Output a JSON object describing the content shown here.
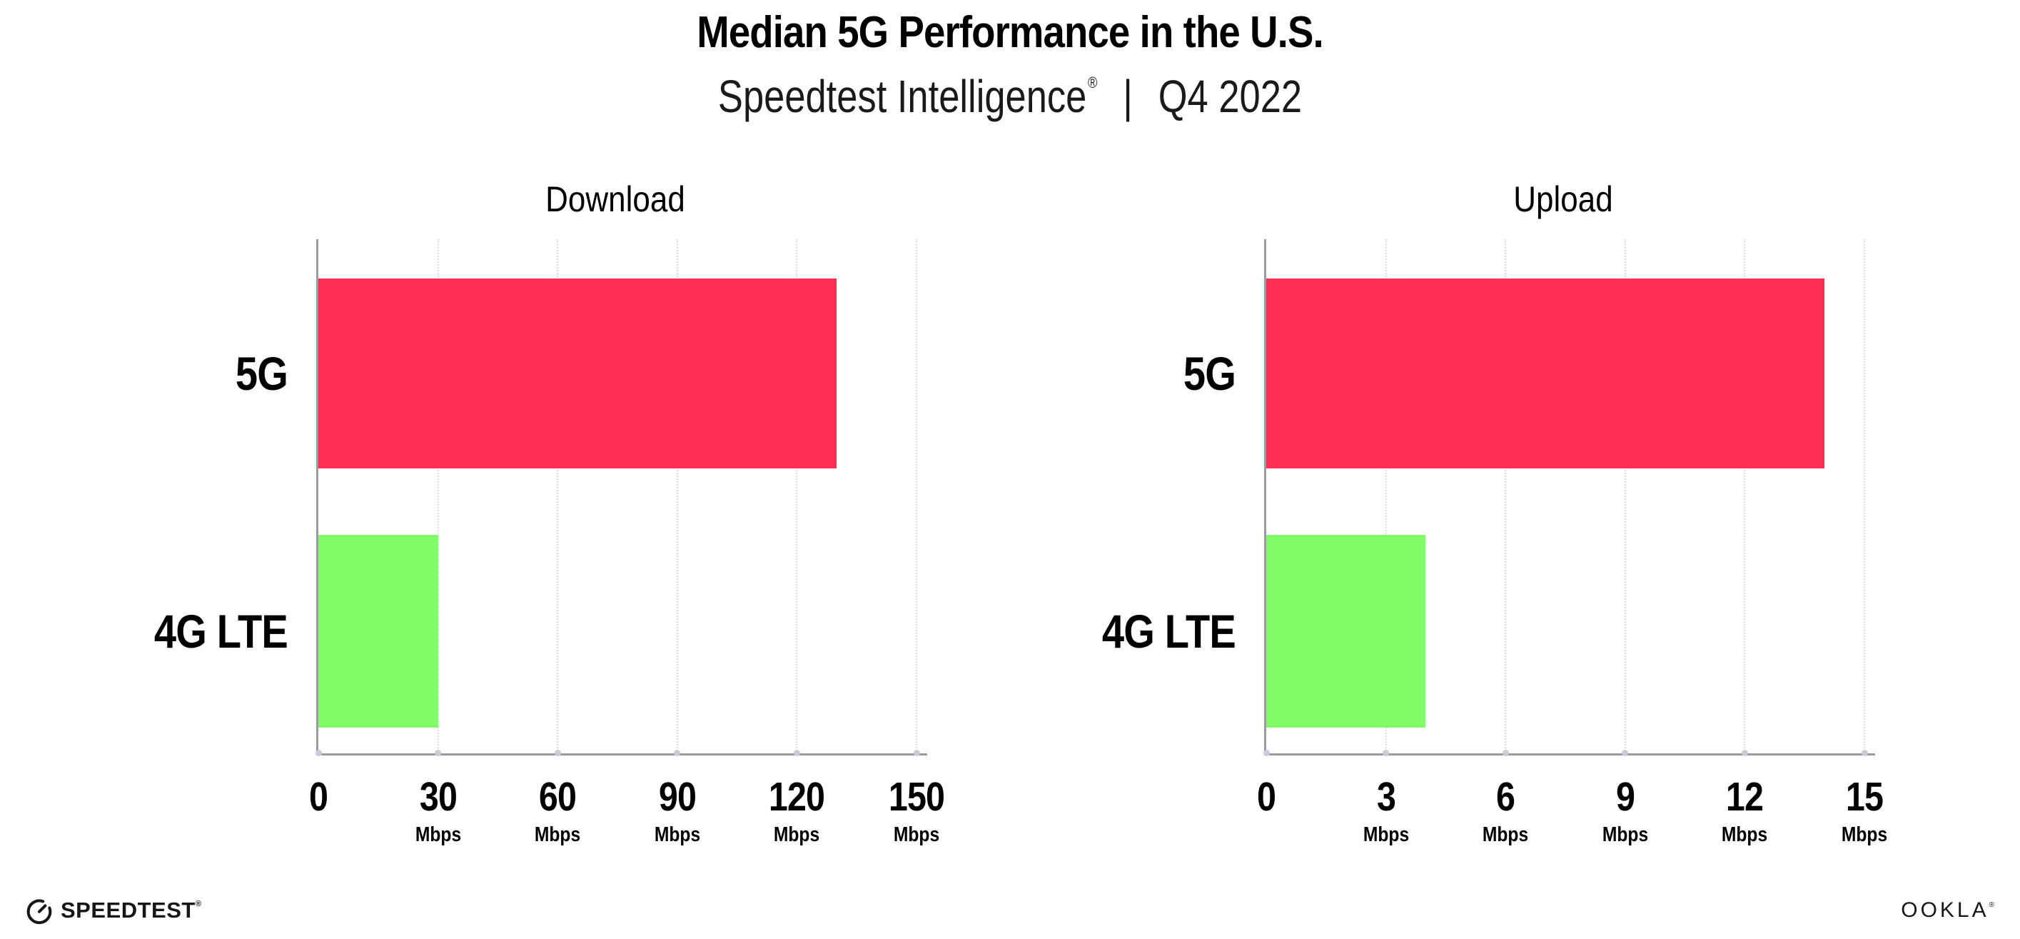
{
  "header": {
    "title": "Median 5G Performance in the U.S.",
    "subtitle_brand": "Speedtest Intelligence",
    "subtitle_registered": "®",
    "subtitle_separator": "|",
    "subtitle_period": "Q4 2022"
  },
  "chart_data": [
    {
      "type": "bar",
      "orientation": "horizontal",
      "title": "Download",
      "categories": [
        "5G",
        "4G LTE"
      ],
      "values": [
        130,
        30
      ],
      "unit": "Mbps",
      "xlim": [
        0,
        150
      ],
      "xticks": [
        0,
        30,
        60,
        90,
        120,
        150
      ],
      "bar_colors": [
        "#FF2E56",
        "#80FD68"
      ],
      "grid": "vertical-dotted",
      "legend": "none"
    },
    {
      "type": "bar",
      "orientation": "horizontal",
      "title": "Upload",
      "categories": [
        "5G",
        "4G LTE"
      ],
      "values": [
        14,
        4
      ],
      "unit": "Mbps",
      "xlim": [
        0,
        15
      ],
      "xticks": [
        0,
        3,
        6,
        9,
        12,
        15
      ],
      "bar_colors": [
        "#FF2E56",
        "#80FD68"
      ],
      "grid": "vertical-dotted",
      "legend": "none"
    }
  ],
  "colors": {
    "bar_5g": "#FF2E56",
    "bar_4g_lte": "#80FD68",
    "axis": "#9B9B9B",
    "gridline": "#DEDEE2",
    "axis_tick_dot": "#C8CCD8",
    "text": "#000000"
  },
  "footer": {
    "speedtest_wordmark": "SPEEDTEST",
    "speedtest_registered": "®",
    "ookla_wordmark": "OOKLA",
    "ookla_registered": "®"
  }
}
